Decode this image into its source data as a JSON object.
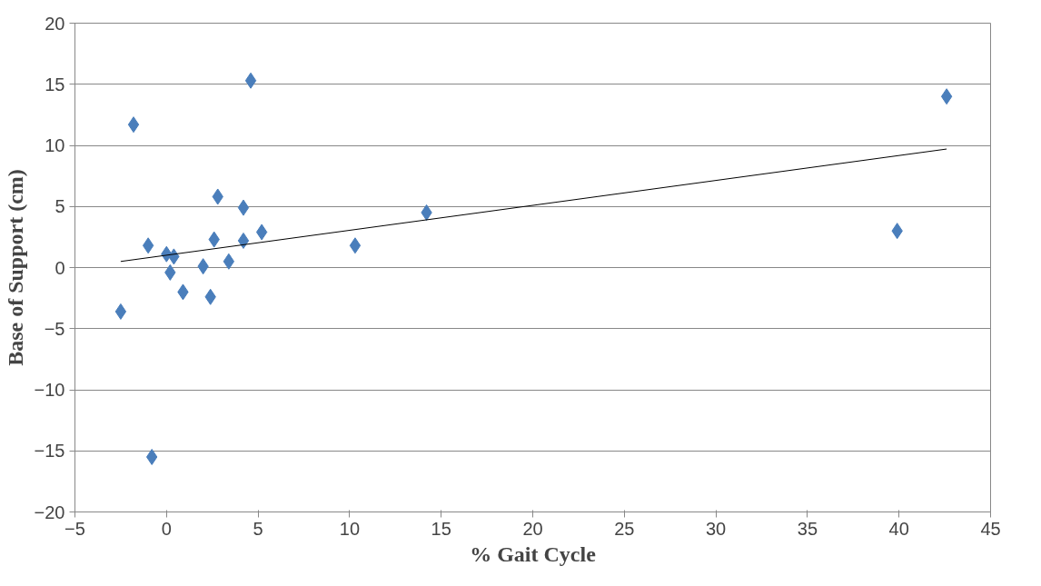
{
  "chart_data": {
    "type": "scatter",
    "xlabel": "% Gait Cycle",
    "ylabel": "Base of Support (cm)",
    "xlim": [
      -5,
      45
    ],
    "ylim": [
      -20,
      20
    ],
    "xticks": [
      -5,
      0,
      5,
      10,
      15,
      20,
      25,
      30,
      35,
      40,
      45
    ],
    "yticks": [
      -20,
      -15,
      -10,
      -5,
      0,
      5,
      10,
      15,
      20
    ],
    "grid": "y",
    "series": [
      {
        "color": "#4a7ebb",
        "marker": "diamond",
        "x": [
          -2.5,
          -1.8,
          -1.0,
          -0.8,
          0,
          0.2,
          0.4,
          0.9,
          2.0,
          2.4,
          2.6,
          2.8,
          3.4,
          4.2,
          4.2,
          4.6,
          5.2,
          10.3,
          14.2,
          39.9,
          42.6
        ],
        "values": [
          -3.6,
          11.7,
          1.8,
          -15.5,
          1.1,
          -0.4,
          0.9,
          -2.0,
          0.1,
          -2.4,
          2.3,
          5.8,
          0.5,
          4.9,
          2.2,
          15.3,
          2.9,
          1.8,
          4.5,
          3.0,
          14.0
        ]
      },
      {
        "type": "line",
        "marker": "none",
        "color": "#000000",
        "x": [
          -2.5,
          42.6
        ],
        "values": [
          0.5,
          9.7
        ]
      }
    ]
  }
}
